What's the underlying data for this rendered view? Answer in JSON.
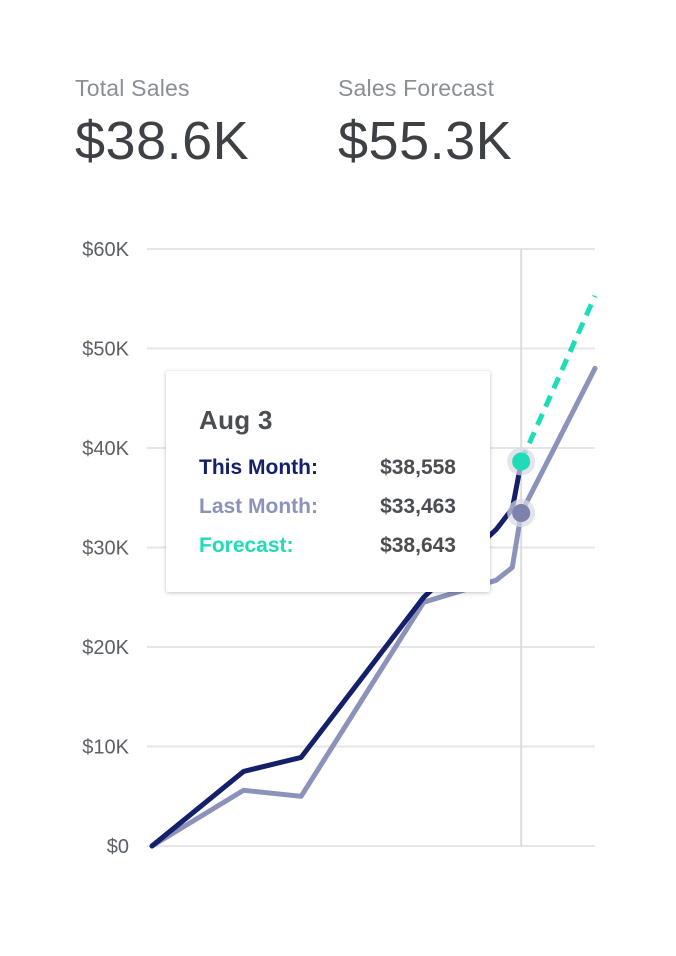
{
  "kpis": {
    "total_sales": {
      "label": "Total Sales",
      "value": "$38.6K"
    },
    "sales_forecast": {
      "label": "Sales Forecast",
      "value": "$55.3K"
    }
  },
  "colors": {
    "this_month": "#14206a",
    "last_month": "#8c93bb",
    "forecast": "#1fdcb8",
    "grid": "#e4e6ea",
    "hover_line": "#dcdde2"
  },
  "tooltip": {
    "title": "Aug 3",
    "rows": [
      {
        "label": "This Month:",
        "value": "$38,558",
        "color": "#14206a"
      },
      {
        "label": "Last Month:",
        "value": "$33,463",
        "color": "#8c93bb"
      },
      {
        "label": "Forecast:",
        "value": "$38,643",
        "color": "#1fdcb8"
      }
    ]
  },
  "chart_data": {
    "type": "line",
    "y_ticks": [
      "$0",
      "$10K",
      "$20K",
      "$30K",
      "$40K",
      "$50K",
      "$60K"
    ],
    "ylim": [
      0,
      60000
    ],
    "xlim": [
      0,
      30
    ],
    "grid": true,
    "hover_x": 25,
    "series": [
      {
        "name": "This Month",
        "style": "solid",
        "x": [
          0,
          6.2,
          10.1,
          18.4,
          23.3,
          24.4,
          25
        ],
        "values": [
          0,
          7500,
          8900,
          25000,
          31800,
          33900,
          38558
        ]
      },
      {
        "name": "Last Month",
        "style": "solid",
        "x": [
          0,
          6.2,
          10.1,
          18.4,
          23.3,
          24.4,
          25,
          30
        ],
        "values": [
          0,
          5600,
          5000,
          24500,
          26700,
          28000,
          33463,
          48000
        ]
      },
      {
        "name": "Forecast",
        "style": "dashed",
        "x": [
          25,
          30
        ],
        "values": [
          38643,
          55300
        ]
      }
    ]
  }
}
